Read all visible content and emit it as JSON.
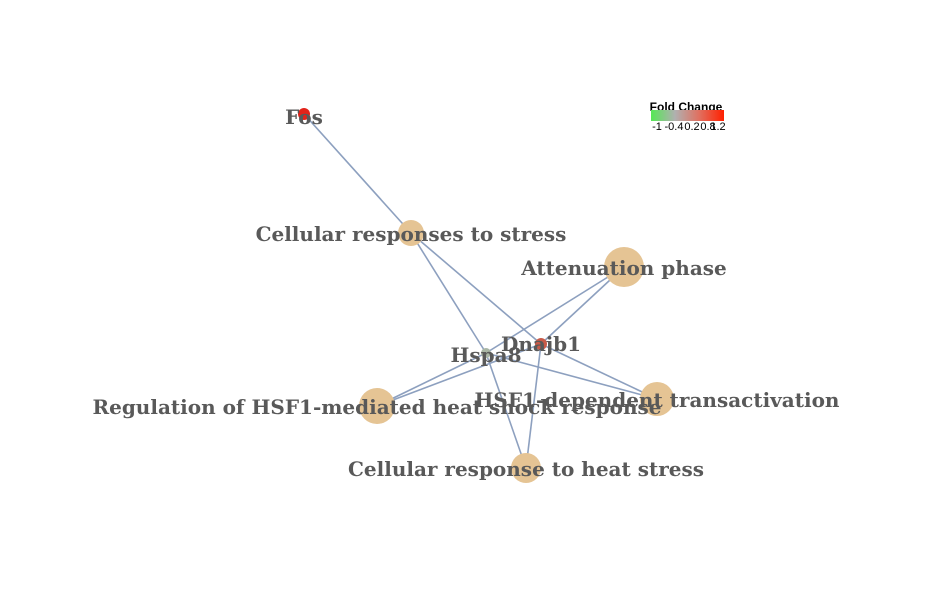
{
  "colors": {
    "edge": "#8da0bf",
    "category_node": "#e5c494",
    "gene_fos": "#e2231a",
    "gene_dnajb1": "#c85a48",
    "gene_hspa8": "#a9b6a6",
    "label": "#595959"
  },
  "legend": {
    "title": "Fold Change",
    "ticks": [
      "-1",
      "-0.4",
      "0.2",
      "0.8",
      "1.2"
    ],
    "gradient": [
      "#55e855",
      "#b0b0b0",
      "#e07060",
      "#ff2000"
    ]
  },
  "network": {
    "nodes": [
      {
        "id": "fos",
        "label": "Fos",
        "kind": "gene"
      },
      {
        "id": "dnajb1",
        "label": "Dnajb1",
        "kind": "gene"
      },
      {
        "id": "hspa8",
        "label": "Hspa8",
        "kind": "gene"
      },
      {
        "id": "stress",
        "label": "Cellular responses to stress",
        "kind": "category"
      },
      {
        "id": "attenuation",
        "label": "Attenuation phase",
        "kind": "category"
      },
      {
        "id": "hsf1reg",
        "label": "Regulation of HSF1-mediated heat shock response",
        "kind": "category"
      },
      {
        "id": "hsf1trans",
        "label": "HSF1-dependent transactivation",
        "kind": "category"
      },
      {
        "id": "heatstress",
        "label": "Cellular response to heat stress",
        "kind": "category"
      }
    ],
    "edges": [
      [
        "fos",
        "stress"
      ],
      [
        "stress",
        "dnajb1"
      ],
      [
        "stress",
        "hspa8"
      ],
      [
        "dnajb1",
        "attenuation"
      ],
      [
        "hspa8",
        "attenuation"
      ],
      [
        "dnajb1",
        "hsf1reg"
      ],
      [
        "hspa8",
        "hsf1reg"
      ],
      [
        "dnajb1",
        "hsf1trans"
      ],
      [
        "hspa8",
        "hsf1trans"
      ],
      [
        "dnajb1",
        "heatstress"
      ],
      [
        "hspa8",
        "heatstress"
      ]
    ]
  }
}
